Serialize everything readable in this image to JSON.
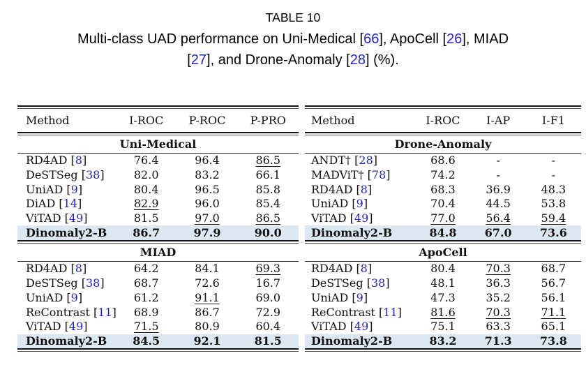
{
  "caption": {
    "title": "TABLE 10",
    "segments": [
      {
        "text": "Multi-class UAD performance on Uni-Medical "
      },
      {
        "cite": "66"
      },
      {
        "text": ", ApoCell "
      },
      {
        "cite": "26"
      },
      {
        "text": ", MIAD"
      },
      {
        "br": true
      },
      {
        "cite": "27"
      },
      {
        "text": ", and Drone-Anomaly "
      },
      {
        "cite": "28"
      },
      {
        "text": " (%)."
      }
    ]
  },
  "colors": {
    "citation_blue": "#2222cc",
    "highlight_row": "#dde7f2",
    "text": "#111111"
  },
  "tables": [
    {
      "name": "left-table",
      "columns": [
        "Method",
        "I-ROC",
        "P-ROC",
        "P-PRO"
      ],
      "blocks": [
        {
          "section": "Uni-Medical",
          "rows": [
            {
              "method": "RD4AD",
              "cite": "8",
              "values": [
                "76.4",
                "96.4",
                "86.5"
              ],
              "underline": [
                false,
                false,
                true
              ]
            },
            {
              "method": "DeSTSeg",
              "cite": "38",
              "values": [
                "82.0",
                "83.2",
                "66.1"
              ],
              "underline": [
                false,
                false,
                false
              ]
            },
            {
              "method": "UniAD",
              "cite": "9",
              "values": [
                "80.4",
                "96.5",
                "85.8"
              ],
              "underline": [
                false,
                false,
                false
              ]
            },
            {
              "method": "DiAD",
              "cite": "14",
              "values": [
                "82.9",
                "96.0",
                "85.4"
              ],
              "underline": [
                true,
                false,
                false
              ]
            },
            {
              "method": "ViTAD",
              "cite": "49",
              "values": [
                "81.5",
                "97.0",
                "86.5"
              ],
              "underline": [
                false,
                true,
                true
              ]
            },
            {
              "method": "Dinomaly2-B",
              "cite": null,
              "values": [
                "86.7",
                "97.9",
                "90.0"
              ],
              "underline": [
                false,
                false,
                false
              ],
              "bold": true,
              "highlight": true
            }
          ]
        },
        {
          "section": "MIAD",
          "rows": [
            {
              "method": "RD4AD",
              "cite": "8",
              "values": [
                "64.2",
                "84.1",
                "69.3"
              ],
              "underline": [
                false,
                false,
                true
              ]
            },
            {
              "method": "DeSTSeg",
              "cite": "38",
              "values": [
                "68.7",
                "72.6",
                "16.7"
              ],
              "underline": [
                false,
                false,
                false
              ]
            },
            {
              "method": "UniAD",
              "cite": "9",
              "values": [
                "61.2",
                "91.1",
                "69.0"
              ],
              "underline": [
                false,
                true,
                false
              ]
            },
            {
              "method": "ReContrast",
              "cite": "11",
              "values": [
                "68.9",
                "86.7",
                "72.9"
              ],
              "underline": [
                false,
                false,
                false
              ]
            },
            {
              "method": "ViTAD",
              "cite": "49",
              "values": [
                "71.5",
                "80.9",
                "60.4"
              ],
              "underline": [
                true,
                false,
                false
              ]
            },
            {
              "method": "Dinomaly2-B",
              "cite": null,
              "values": [
                "84.5",
                "92.1",
                "81.5"
              ],
              "underline": [
                false,
                false,
                false
              ],
              "bold": true,
              "highlight": true
            }
          ]
        }
      ]
    },
    {
      "name": "right-table",
      "columns": [
        "Method",
        "I-ROC",
        "I-AP",
        "I-F1"
      ],
      "blocks": [
        {
          "section": "Drone-Anomaly",
          "rows": [
            {
              "method": "ANDT†",
              "cite": "28",
              "values": [
                "68.6",
                "-",
                "-"
              ],
              "underline": [
                false,
                false,
                false
              ]
            },
            {
              "method": "MADViT†",
              "cite": "78",
              "values": [
                "74.2",
                "-",
                "-"
              ],
              "underline": [
                false,
                false,
                false
              ]
            },
            {
              "method": "RD4AD",
              "cite": "8",
              "values": [
                "68.3",
                "36.9",
                "48.3"
              ],
              "underline": [
                false,
                false,
                false
              ]
            },
            {
              "method": "UniAD",
              "cite": "9",
              "values": [
                "70.4",
                "44.5",
                "53.8"
              ],
              "underline": [
                false,
                false,
                false
              ]
            },
            {
              "method": "ViTAD",
              "cite": "49",
              "values": [
                "77.0",
                "56.4",
                "59.4"
              ],
              "underline": [
                true,
                true,
                true
              ]
            },
            {
              "method": "Dinomaly2-B",
              "cite": null,
              "values": [
                "84.8",
                "67.0",
                "73.6"
              ],
              "underline": [
                false,
                false,
                false
              ],
              "bold": true,
              "highlight": true
            }
          ]
        },
        {
          "section": "ApoCell",
          "rows": [
            {
              "method": "RD4AD",
              "cite": "8",
              "values": [
                "80.4",
                "70.3",
                "68.7"
              ],
              "underline": [
                false,
                true,
                false
              ]
            },
            {
              "method": "DeSTSeg",
              "cite": "38",
              "values": [
                "48.1",
                "36.3",
                "56.7"
              ],
              "underline": [
                false,
                false,
                false
              ]
            },
            {
              "method": "UniAD",
              "cite": "9",
              "values": [
                "47.3",
                "35.2",
                "56.1"
              ],
              "underline": [
                false,
                false,
                false
              ]
            },
            {
              "method": "ReContrast",
              "cite": "11",
              "values": [
                "81.6",
                "70.3",
                "71.1"
              ],
              "underline": [
                true,
                true,
                true
              ]
            },
            {
              "method": "ViTAD",
              "cite": "49",
              "values": [
                "75.1",
                "63.3",
                "65.1"
              ],
              "underline": [
                false,
                false,
                false
              ]
            },
            {
              "method": "Dinomaly2-B",
              "cite": null,
              "values": [
                "83.2",
                "71.3",
                "73.8"
              ],
              "underline": [
                false,
                false,
                false
              ],
              "bold": true,
              "highlight": true
            }
          ]
        }
      ]
    }
  ]
}
